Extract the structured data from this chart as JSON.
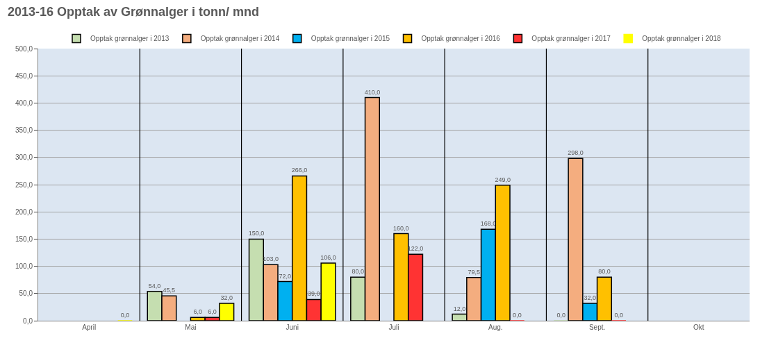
{
  "chart_data": {
    "type": "bar",
    "title": "2013-16 Opptak av Grønnalger i tonn/ mnd",
    "categories": [
      "April",
      "Mai",
      "Juni",
      "Juli",
      "Aug.",
      "Sept.",
      "Okt"
    ],
    "series": [
      {
        "name": "Opptak grønnalger i 2013",
        "color": "#c5deb0",
        "values": [
          null,
          54.0,
          150.0,
          80.0,
          12.0,
          0.0,
          null
        ],
        "value_labels": [
          null,
          "54,0",
          "150,0",
          "80,0",
          "12,0",
          "0,0",
          null
        ]
      },
      {
        "name": "Opptak grønnalger i 2014",
        "color": "#f4ad7f",
        "values": [
          null,
          45.5,
          103.0,
          410.0,
          79.5,
          298.0,
          null
        ],
        "value_labels": [
          null,
          "45,5",
          "103,0",
          "410,0",
          "79,5",
          "298,0",
          null
        ]
      },
      {
        "name": "Opptak grønnalger i 2015",
        "color": "#00b0f0",
        "values": [
          null,
          null,
          72.0,
          null,
          168.0,
          32.0,
          null
        ],
        "value_labels": [
          null,
          null,
          "72,0",
          null,
          "168,0",
          "32,0",
          null
        ]
      },
      {
        "name": "Opptak grønnalger i 2016",
        "color": "#ffc000",
        "values": [
          null,
          6.0,
          266.0,
          160.0,
          249.0,
          80.0,
          null
        ],
        "value_labels": [
          null,
          "6,0",
          "266,0",
          "160,0",
          "249,0",
          "80,0",
          null
        ]
      },
      {
        "name": "Opptak grønnalger i 2017",
        "color": "#ff3333",
        "values": [
          null,
          6.0,
          39.0,
          122.0,
          0.0,
          0.0,
          null
        ],
        "value_labels": [
          null,
          "6,0",
          "39,0",
          "122,0",
          "0,0",
          "0,0",
          null
        ]
      },
      {
        "name": "Opptak grønnalger i 2018",
        "color": "#ffff00",
        "values": [
          0.0,
          32.0,
          106.0,
          null,
          null,
          null,
          null
        ],
        "value_labels": [
          "0,0",
          "32,0",
          "106,0",
          null,
          null,
          null,
          null
        ]
      }
    ],
    "ylim": [
      0,
      500
    ],
    "yticks": [
      {
        "value": 0,
        "label": "0,0"
      },
      {
        "value": 50,
        "label": "50,0"
      },
      {
        "value": 100,
        "label": "100,0"
      },
      {
        "value": 150,
        "label": "150,0"
      },
      {
        "value": 200,
        "label": "200,0"
      },
      {
        "value": 250,
        "label": "250,0"
      },
      {
        "value": 300,
        "label": "300,0"
      },
      {
        "value": 350,
        "label": "350,0"
      },
      {
        "value": 400,
        "label": "400,0"
      },
      {
        "value": 450,
        "label": "450,0"
      },
      {
        "value": 500,
        "label": "500,0"
      }
    ],
    "grid": "y",
    "legend": "top"
  }
}
